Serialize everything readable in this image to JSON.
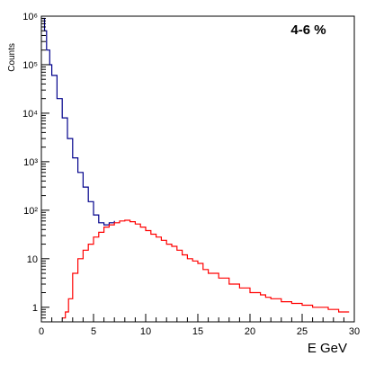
{
  "chart_data": {
    "type": "line",
    "title": "",
    "annotation": "4-6 %",
    "xlabel": "E GeV",
    "ylabel": "Counts",
    "xlim": [
      0,
      30
    ],
    "ylim": [
      0.5,
      1000000
    ],
    "y_scale": "log",
    "x_ticks": [
      "0",
      "5",
      "10",
      "15",
      "20",
      "25",
      "30"
    ],
    "y_ticks": [
      {
        "value": 1,
        "label": "1"
      },
      {
        "value": 10,
        "label": "10"
      },
      {
        "value": 100,
        "label": "10²"
      },
      {
        "value": 1000,
        "label": "10³"
      },
      {
        "value": 10000,
        "label": "10⁴"
      },
      {
        "value": 100000,
        "label": "10⁵"
      },
      {
        "value": 1000000,
        "label": "10⁶"
      }
    ],
    "grid": false,
    "series": [
      {
        "color": "#00008b",
        "x": [
          0.1,
          0.3,
          0.5,
          0.8,
          1.0,
          1.5,
          2.0,
          2.5,
          3.0,
          3.5,
          4.0,
          4.5,
          5.0,
          5.5,
          6.0,
          6.5,
          7.0
        ],
        "y": [
          900000,
          500000,
          200000,
          100000,
          60000,
          20000,
          8000,
          3000,
          1200,
          600,
          300,
          150,
          80,
          55,
          50,
          55,
          60
        ]
      },
      {
        "color": "#ff0000",
        "x": [
          2.0,
          2.3,
          2.6,
          3.0,
          3.5,
          4.0,
          4.5,
          5.0,
          5.5,
          6.0,
          6.5,
          7.0,
          7.5,
          8.0,
          8.5,
          9.0,
          9.5,
          10.0,
          10.5,
          11.0,
          11.5,
          12.0,
          12.5,
          13.0,
          13.5,
          14.0,
          14.5,
          15.0,
          15.5,
          16.0,
          16.5,
          17.0,
          17.5,
          18.0,
          18.5,
          19.0,
          19.5,
          20.0,
          20.5,
          21.0,
          21.5,
          22.0,
          22.5,
          23.0,
          23.5,
          24.0,
          24.5,
          25.0,
          25.5,
          26.0,
          26.5,
          27.0,
          27.5,
          28.0,
          28.5,
          29.0,
          29.5
        ],
        "y": [
          0.6,
          0.8,
          1.5,
          5,
          10,
          15,
          20,
          28,
          35,
          45,
          50,
          55,
          60,
          62,
          58,
          52,
          45,
          38,
          32,
          28,
          24,
          20,
          18,
          15,
          12,
          10,
          9,
          8,
          6,
          5,
          5,
          4,
          4,
          3,
          3,
          2.5,
          2.5,
          2,
          2,
          1.8,
          1.6,
          1.5,
          1.5,
          1.3,
          1.3,
          1.2,
          1.2,
          1.1,
          1.1,
          1.0,
          1.0,
          1.0,
          0.9,
          0.9,
          0.8,
          0.8,
          0.8
        ]
      }
    ]
  }
}
